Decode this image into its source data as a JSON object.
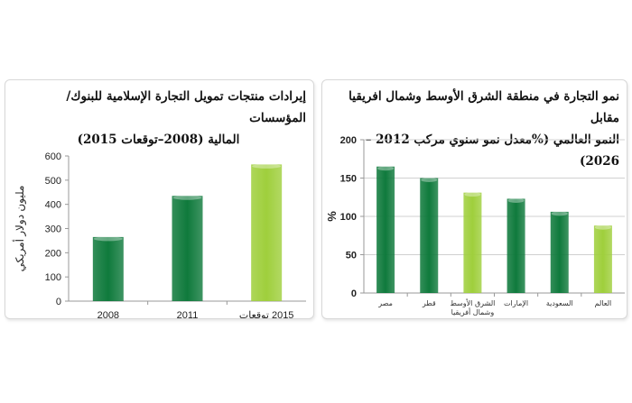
{
  "chart_data": [
    {
      "type": "bar",
      "title_line1": "إيرادات منتجات تمويل التجارة الإسلامية للبنوك/ المؤسسات",
      "title_line2": "المالية (2008–توقعات 2015)",
      "xlabel": "",
      "ylabel": "مليون دولار أمريكي",
      "categories": [
        "2008",
        "2011",
        "2015 توقعات"
      ],
      "values": [
        265,
        435,
        565
      ],
      "colors": [
        "#0f7a3c",
        "#0f7a3c",
        "#9fcf3c"
      ],
      "ylim": [
        0,
        600
      ],
      "yticks": [
        "0",
        "100",
        "200",
        "300",
        "400",
        "500",
        "600"
      ],
      "grid": false
    },
    {
      "type": "bar",
      "title_line1": "نمو التجارة في منطقة الشرق الأوسط وشمال افريقيا مقابل",
      "title_line2": "النمو العالمي (%معدل نمو سنوي مركب 2012 –2026)",
      "xlabel": "",
      "ylabel": "%",
      "categories": [
        "مصر",
        "قطر",
        "الشرق الأوسط وشمال أفريقيا",
        "الإمارات",
        "السعودية",
        "العالم"
      ],
      "category_lines": [
        [
          "مصر"
        ],
        [
          "قطر"
        ],
        [
          "الشرق الأوسط",
          "وشمال أفريقيا"
        ],
        [
          "الإمارات"
        ],
        [
          "السعودية"
        ],
        [
          "العالم"
        ]
      ],
      "values": [
        165,
        150,
        131,
        123,
        106,
        88
      ],
      "colors": [
        "#0f7a3c",
        "#0f7a3c",
        "#9fcf3c",
        "#0f7a3c",
        "#0f7a3c",
        "#9fcf3c"
      ],
      "ylim": [
        0,
        200
      ],
      "yticks": [
        "0",
        "50",
        "100",
        "150",
        "200"
      ],
      "grid": true
    }
  ]
}
